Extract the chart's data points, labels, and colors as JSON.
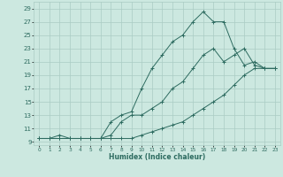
{
  "xlabel": "Humidex (Indice chaleur)",
  "background_color": "#cce8e0",
  "grid_color": "#aaccc4",
  "line_color": "#2d6b60",
  "xlim": [
    -0.5,
    23.5
  ],
  "ylim": [
    8.5,
    30
  ],
  "xticks": [
    0,
    1,
    2,
    3,
    4,
    5,
    6,
    7,
    8,
    9,
    10,
    11,
    12,
    13,
    14,
    15,
    16,
    17,
    18,
    19,
    20,
    21,
    22,
    23
  ],
  "yticks": [
    9,
    11,
    13,
    15,
    17,
    19,
    21,
    23,
    25,
    27,
    29
  ],
  "curve1_x": [
    0,
    1,
    2,
    3,
    4,
    5,
    6,
    7,
    8,
    9,
    10,
    11,
    12,
    13,
    14,
    15,
    16,
    17,
    18,
    19,
    20,
    21,
    22,
    23
  ],
  "curve1_y": [
    9.5,
    9.5,
    9.5,
    9.5,
    9.5,
    9.5,
    9.5,
    9.5,
    9.5,
    9.5,
    10,
    10.5,
    11,
    11.5,
    12,
    13,
    14,
    15,
    16,
    17.5,
    19,
    20,
    20,
    20
  ],
  "curve2_x": [
    0,
    1,
    2,
    3,
    4,
    5,
    6,
    7,
    8,
    9,
    10,
    11,
    12,
    13,
    14,
    15,
    16,
    17,
    18,
    19,
    20,
    21,
    22,
    23
  ],
  "curve2_y": [
    9.5,
    9.5,
    9.5,
    9.5,
    9.5,
    9.5,
    9.5,
    10,
    12,
    13,
    13,
    14,
    15,
    17,
    18,
    20,
    22,
    23,
    21,
    22,
    23,
    20.5,
    20,
    20
  ],
  "curve3_x": [
    0,
    1,
    2,
    3,
    4,
    5,
    6,
    7,
    8,
    9,
    10,
    11,
    12,
    13,
    14,
    15,
    16,
    17,
    18,
    19,
    20,
    21,
    22,
    23
  ],
  "curve3_y": [
    9.5,
    9.5,
    10,
    9.5,
    9.5,
    9.5,
    9.5,
    12,
    13,
    13.5,
    17,
    20,
    22,
    24,
    25,
    27,
    28.5,
    27,
    27,
    23,
    20.5,
    21,
    20,
    20
  ]
}
